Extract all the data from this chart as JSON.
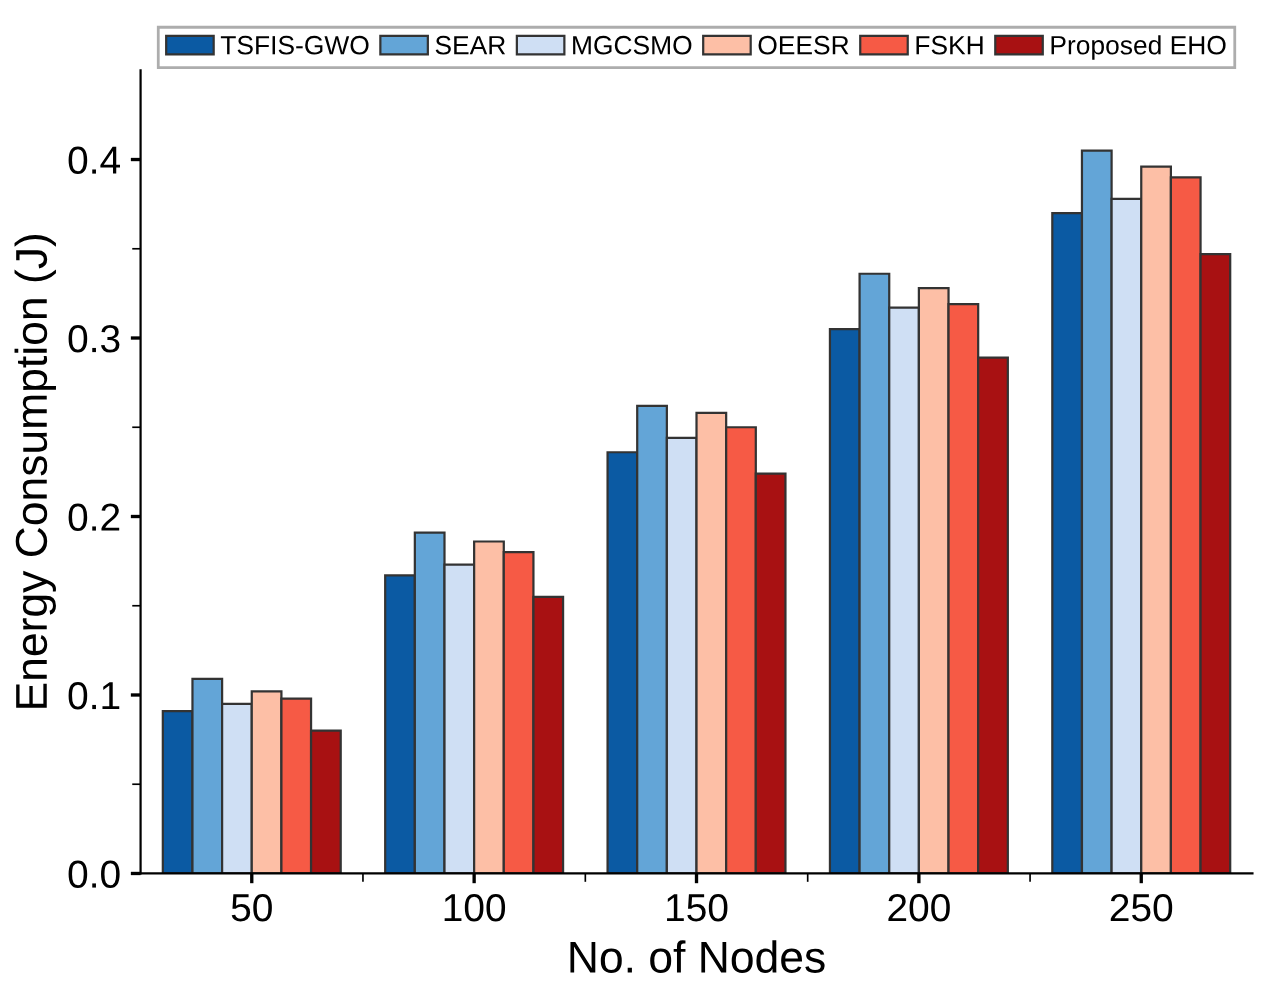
{
  "chart_data": {
    "type": "bar",
    "xlabel": "No. of Nodes",
    "ylabel": "Energy Consumption (J)",
    "categories": [
      "50",
      "100",
      "150",
      "200",
      "250"
    ],
    "series": [
      {
        "name": "TSFIS-GWO",
        "color": "#0b5aa3",
        "values": [
          0.091,
          0.167,
          0.236,
          0.305,
          0.37
        ]
      },
      {
        "name": "SEAR",
        "color": "#63a5d7",
        "values": [
          0.109,
          0.191,
          0.262,
          0.336,
          0.405
        ]
      },
      {
        "name": "MGCSMO",
        "color": "#cfdff4",
        "values": [
          0.095,
          0.173,
          0.244,
          0.317,
          0.378
        ]
      },
      {
        "name": "OEESR",
        "color": "#fdbfa6",
        "values": [
          0.102,
          0.186,
          0.258,
          0.328,
          0.396
        ]
      },
      {
        "name": "FSKH",
        "color": "#f65a45",
        "values": [
          0.098,
          0.18,
          0.25,
          0.319,
          0.39
        ]
      },
      {
        "name": "Proposed EHO",
        "color": "#a81112",
        "values": [
          0.08,
          0.155,
          0.224,
          0.289,
          0.347
        ]
      }
    ],
    "ylim": [
      0,
      0.45
    ],
    "yticks": [
      {
        "value": 0,
        "label": "0.0"
      },
      0.1,
      0.2,
      0.3,
      0.4
    ],
    "grid": false,
    "legend": "top"
  }
}
